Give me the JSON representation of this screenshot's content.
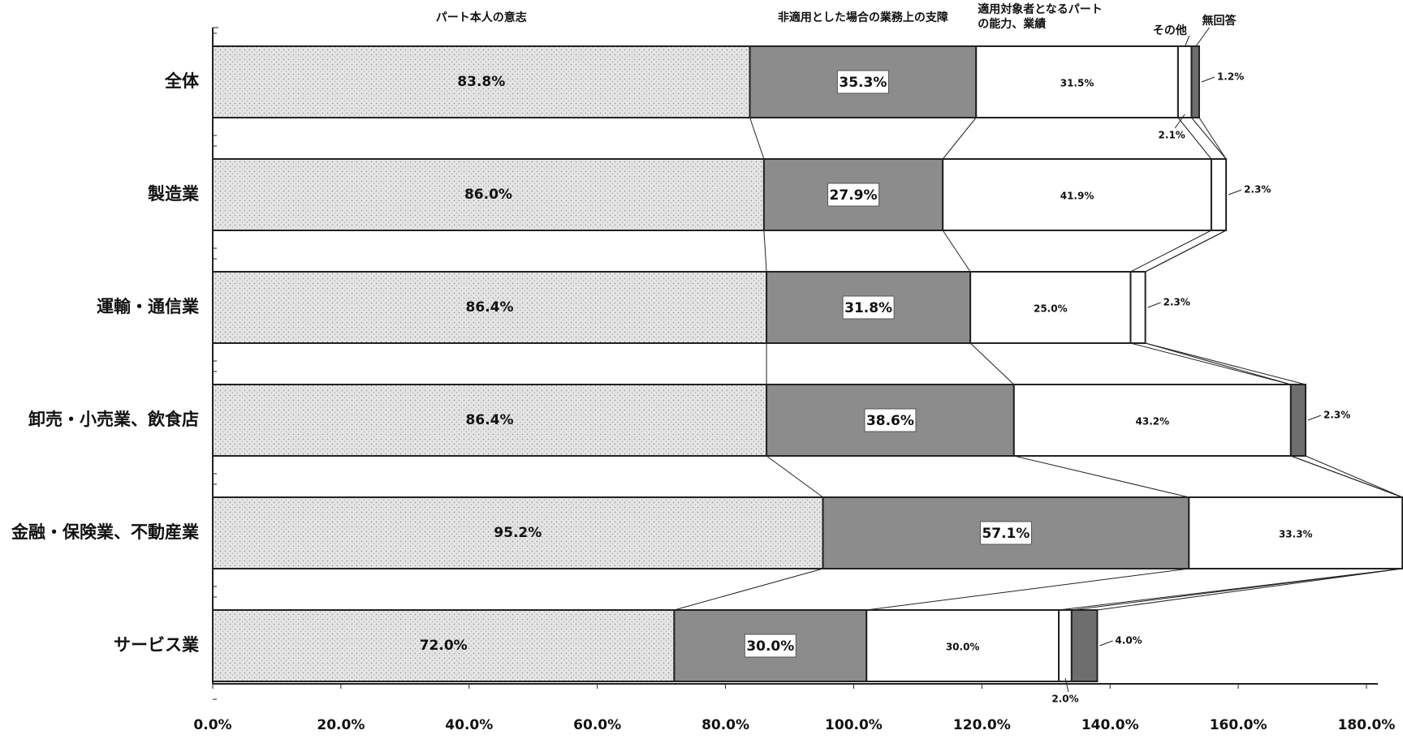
{
  "chart_data": {
    "type": "bar",
    "orientation": "horizontal",
    "stacked": true,
    "categories": [
      "全体",
      "製造業",
      "運輸・通信業",
      "卸売・小売業、飲食店",
      "金融・保険業、不動産業",
      "サービス業"
    ],
    "series": [
      {
        "name": "パート本人の意志",
        "values": [
          83.8,
          86.0,
          86.4,
          86.4,
          95.2,
          72.0
        ],
        "labels": [
          "83.8%",
          "86.0%",
          "86.4%",
          "86.4%",
          "95.2%",
          "72.0%"
        ],
        "fill": "#dcdcdc"
      },
      {
        "name": "非適用とした場合の業務上の支障",
        "values": [
          35.3,
          27.9,
          31.8,
          38.6,
          57.1,
          30.0
        ],
        "labels": [
          "35.3%",
          "27.9%",
          "31.8%",
          "38.6%",
          "57.1%",
          "30.0%"
        ],
        "fill": "#8c8c8c"
      },
      {
        "name": "適用対象者となるパートの能力、業績",
        "name_lines": [
          "適用対象者となるパート",
          "の能力、業績"
        ],
        "values": [
          31.5,
          41.9,
          25.0,
          43.2,
          33.3,
          30.0
        ],
        "labels": [
          "31.5%",
          "41.9%",
          "25.0%",
          "43.2%",
          "33.3%",
          "30.0%"
        ],
        "fill": "#ffffff"
      },
      {
        "name": "その他",
        "values": [
          2.1,
          2.3,
          2.3,
          0,
          0,
          2.0
        ],
        "labels": [
          "2.1%",
          "2.3%",
          "2.3%",
          "",
          "",
          "2.0%"
        ],
        "fill": "#ffffff"
      },
      {
        "name": "無回答",
        "values": [
          1.2,
          0,
          0,
          2.3,
          0,
          4.0
        ],
        "labels": [
          "1.2%",
          "",
          "",
          "2.3%",
          "",
          "4.0%"
        ],
        "fill": "#6e6e6e"
      }
    ],
    "x_ticks": [
      "0.0%",
      "20.0%",
      "40.0%",
      "60.0%",
      "80.0%",
      "100.0%",
      "120.0%",
      "140.0%",
      "160.0%",
      "180.0%"
    ],
    "xlim": [
      0,
      180
    ],
    "grid": false,
    "legend": "top"
  }
}
